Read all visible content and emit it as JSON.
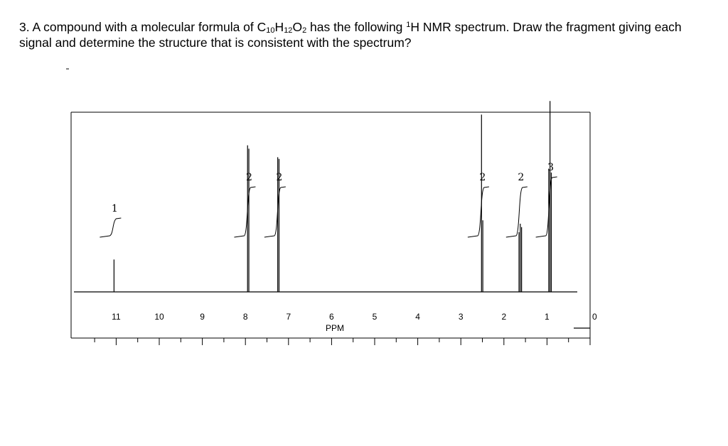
{
  "question": {
    "number": "3.",
    "text_a": "A compound with a molecular formula of C",
    "c_sub": "10",
    "text_b": "H",
    "h_sub": "12",
    "text_c": "O",
    "o_sub": "2",
    "text_d": " has the following ",
    "sup": "1",
    "text_e": "H NMR spectrum. Draw the fragment giving each signal and determine the structure that is consistent with the spectrum?"
  },
  "chart_data": {
    "type": "line",
    "title": "",
    "xlabel": "PPM",
    "ylabel": "",
    "xlim": [
      11.5,
      0
    ],
    "x_reversed": true,
    "grid": false,
    "ticks": [
      "11",
      "10",
      "9",
      "8",
      "7",
      "6",
      "5",
      "4",
      "3",
      "2",
      "1",
      "0"
    ],
    "tick_values": [
      11,
      10,
      9,
      8,
      7,
      6,
      5,
      4,
      3,
      2,
      1,
      0
    ],
    "peaks": [
      {
        "ppm": 11.05,
        "intensity": 0.19
      },
      {
        "ppm": 7.95,
        "intensity": 0.86
      },
      {
        "ppm": 7.92,
        "intensity": 0.84
      },
      {
        "ppm": 7.25,
        "intensity": 0.79
      },
      {
        "ppm": 7.22,
        "intensity": 0.78
      },
      {
        "ppm": 2.52,
        "intensity": 1.04
      },
      {
        "ppm": 2.49,
        "intensity": 0.42
      },
      {
        "ppm": 1.65,
        "intensity": 0.35
      },
      {
        "ppm": 1.62,
        "intensity": 0.4
      },
      {
        "ppm": 1.59,
        "intensity": 0.38
      },
      {
        "ppm": 0.96,
        "intensity": 0.72
      },
      {
        "ppm": 0.93,
        "intensity": 1.12
      },
      {
        "ppm": 0.9,
        "intensity": 0.7
      }
    ],
    "integrations": [
      {
        "ppm": 11.05,
        "label": "1"
      },
      {
        "ppm": 7.93,
        "label": "2"
      },
      {
        "ppm": 7.23,
        "label": "2"
      },
      {
        "ppm": 2.51,
        "label": "2"
      },
      {
        "ppm": 1.62,
        "label": "2"
      },
      {
        "ppm": 0.93,
        "label": "3"
      }
    ]
  }
}
